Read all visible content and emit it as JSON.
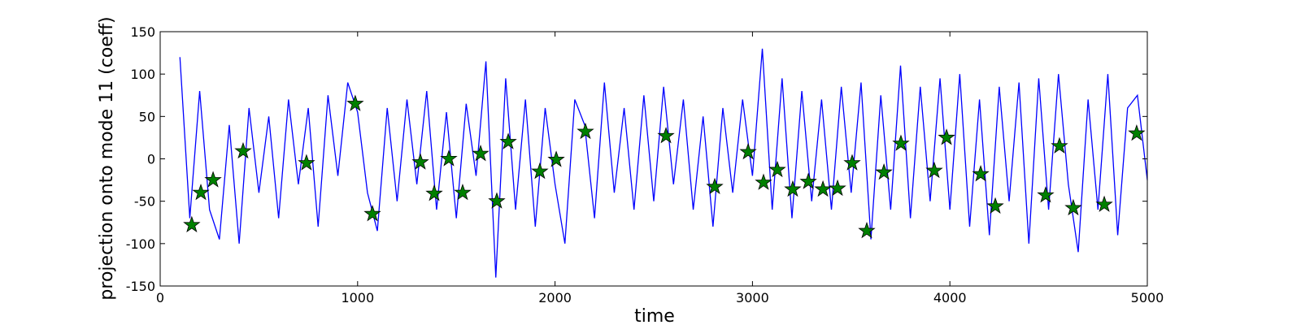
{
  "chart_data": {
    "type": "line",
    "x_label": "time",
    "y_label": "projection onto mode 11 (coeff)",
    "xlim": [
      0,
      5000
    ],
    "ylim": [
      -150,
      150
    ],
    "xticks": [
      0,
      1000,
      2000,
      3000,
      4000,
      5000
    ],
    "yticks": [
      -150,
      -100,
      -50,
      0,
      50,
      100,
      150
    ],
    "series": [
      {
        "color": "#0000ff",
        "marker": "none",
        "x": [
          100,
          150,
          200,
          250,
          300,
          350,
          400,
          450,
          500,
          550,
          600,
          650,
          700,
          750,
          800,
          850,
          900,
          950,
          1000,
          1050,
          1100,
          1150,
          1200,
          1250,
          1300,
          1350,
          1400,
          1450,
          1500,
          1550,
          1600,
          1650,
          1700,
          1750,
          1800,
          1850,
          1900,
          1950,
          2000,
          2050,
          2100,
          2150,
          2200,
          2250,
          2300,
          2350,
          2400,
          2450,
          2500,
          2550,
          2600,
          2650,
          2700,
          2750,
          2800,
          2850,
          2900,
          2950,
          3000,
          3050,
          3100,
          3150,
          3200,
          3250,
          3300,
          3350,
          3400,
          3450,
          3500,
          3550,
          3600,
          3650,
          3700,
          3750,
          3800,
          3850,
          3900,
          3950,
          4000,
          4050,
          4100,
          4150,
          4200,
          4250,
          4300,
          4350,
          4400,
          4450,
          4500,
          4550,
          4600,
          4650,
          4700,
          4750,
          4800,
          4850,
          4900,
          4950,
          5000
        ],
        "values": [
          120,
          -70,
          80,
          -60,
          -95,
          40,
          -100,
          60,
          -40,
          50,
          -70,
          70,
          -30,
          60,
          -80,
          75,
          -20,
          90,
          55,
          -40,
          -85,
          60,
          -50,
          70,
          -30,
          80,
          -60,
          55,
          -70,
          65,
          -20,
          115,
          -140,
          95,
          -60,
          70,
          -80,
          60,
          -30,
          -100,
          70,
          40,
          -70,
          90,
          -40,
          60,
          -60,
          75,
          -50,
          85,
          -30,
          70,
          -60,
          50,
          -80,
          60,
          -40,
          70,
          -20,
          130,
          -60,
          95,
          -70,
          80,
          -50,
          70,
          -60,
          85,
          -40,
          90,
          -95,
          75,
          -60,
          110,
          -70,
          85,
          -50,
          95,
          -60,
          100,
          -80,
          70,
          -90,
          85,
          -50,
          90,
          -100,
          95,
          -60,
          100,
          -30,
          -110,
          70,
          -60,
          100,
          -90,
          60,
          75,
          -25
        ]
      },
      {
        "color": "#008000",
        "marker": "star",
        "x": [
          160,
          206,
          268,
          420,
          741,
          988,
          1075,
          1318,
          1388,
          1462,
          1532,
          1623,
          1705,
          1763,
          1923,
          2006,
          2154,
          2562,
          2809,
          2978,
          3056,
          3126,
          3204,
          3283,
          3357,
          3431,
          3505,
          3579,
          3666,
          3752,
          3921,
          3983,
          4156,
          4230,
          4485,
          4555,
          4625,
          4782,
          4946
        ],
        "values": [
          -78,
          -40,
          -25,
          9,
          -5,
          65,
          -65,
          -4,
          -41,
          0,
          -40,
          6,
          -50,
          20,
          -15,
          -1,
          32,
          27,
          -33,
          8,
          -28,
          -13,
          -36,
          -27,
          -36,
          -35,
          -5,
          -85,
          -16,
          18,
          -14,
          25,
          -18,
          -56,
          -43,
          15,
          -58,
          -54,
          30
        ]
      }
    ]
  }
}
